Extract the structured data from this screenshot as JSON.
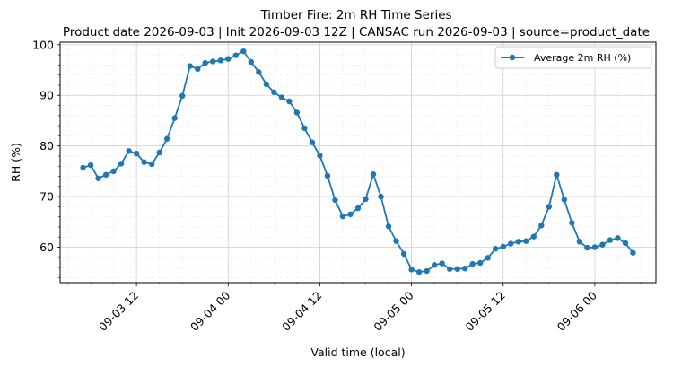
{
  "chart_data": {
    "type": "line",
    "title": "Timber Fire: 2m RH Time Series",
    "subtitle": "Product date 2026-09-03 | Init 2026-09-03 12Z | CANSAC run 2026-09-03 | source=product_date",
    "xlabel": "Valid time (local)",
    "ylabel": "RH (%)",
    "x_start": "2026-09-03 05:00",
    "x_step_hours": 1,
    "xlim": [
      "2026-09-03 02:00",
      "2026-09-06 08:00"
    ],
    "ylim": [
      53,
      100.5
    ],
    "x_ticks": [
      {
        "label": "09-03 12",
        "time": "2026-09-03 12:00"
      },
      {
        "label": "09-04 00",
        "time": "2026-09-04 00:00"
      },
      {
        "label": "09-04 12",
        "time": "2026-09-04 12:00"
      },
      {
        "label": "09-05 00",
        "time": "2026-09-05 00:00"
      },
      {
        "label": "09-05 12",
        "time": "2026-09-05 12:00"
      },
      {
        "label": "09-06 00",
        "time": "2026-09-06 00:00"
      }
    ],
    "y_ticks": [
      60,
      70,
      80,
      90,
      100
    ],
    "grid": true,
    "legend": "upper right",
    "series": [
      {
        "name": "Average 2m RH (%)",
        "color": "#1f77b4",
        "marker": "circle",
        "values": [
          75.7,
          76.2,
          73.6,
          74.3,
          75.0,
          76.5,
          79.0,
          78.5,
          76.8,
          76.4,
          78.7,
          81.4,
          85.5,
          89.9,
          95.8,
          95.2,
          96.4,
          96.7,
          96.9,
          97.2,
          97.9,
          98.7,
          96.6,
          94.6,
          92.2,
          90.6,
          89.6,
          88.8,
          86.6,
          83.5,
          80.7,
          78.1,
          74.1,
          69.3,
          66.1,
          66.5,
          67.7,
          69.5,
          74.4,
          70.0,
          64.1,
          61.2,
          58.7,
          55.6,
          55.1,
          55.3,
          56.5,
          56.8,
          55.7,
          55.7,
          55.8,
          56.7,
          56.9,
          57.9,
          59.7,
          60.1,
          60.7,
          61.1,
          61.2,
          62.1,
          64.3,
          68.0,
          74.3,
          69.4,
          64.8,
          61.1,
          59.9,
          60.0,
          60.5,
          61.4,
          61.8,
          60.8,
          58.9
        ]
      }
    ]
  }
}
